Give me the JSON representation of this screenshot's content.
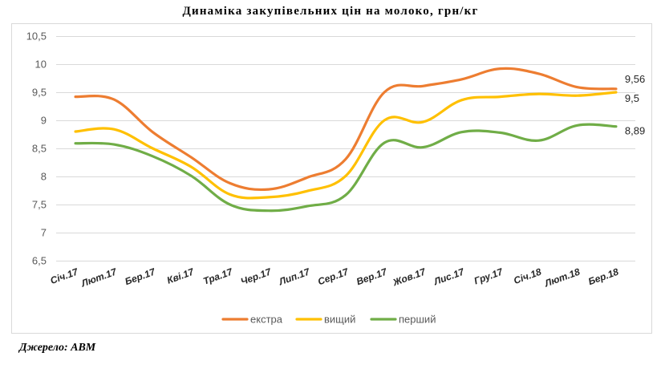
{
  "chart_data": {
    "type": "line",
    "title": "Динаміка закупівельних цін на молоко, грн/кг",
    "xlabel": "",
    "ylabel": "",
    "categories": [
      "Січ.17",
      "Лют.17",
      "Бер.17",
      "Кві.17",
      "Тра.17",
      "Чер.17",
      "Лип.17",
      "Сер.17",
      "Вер.17",
      "Жов.17",
      "Лис.17",
      "Гру.17",
      "Січ.18",
      "Лют.18",
      "Бер.18"
    ],
    "ylim": [
      6.5,
      10.5
    ],
    "yticks": [
      "6,5",
      "7",
      "7,5",
      "8",
      "8,5",
      "9",
      "9,5",
      "10",
      "10,5"
    ],
    "grid": true,
    "legend_position": "bottom",
    "series": [
      {
        "name": "екстра",
        "color": "#ED7D31",
        "values": [
          9.42,
          9.37,
          8.79,
          8.34,
          7.88,
          7.77,
          7.98,
          8.31,
          9.5,
          9.61,
          9.73,
          9.92,
          9.83,
          9.59,
          9.56
        ],
        "end_label": "9,56"
      },
      {
        "name": "вищий",
        "color": "#FFC000",
        "values": [
          8.8,
          8.84,
          8.5,
          8.17,
          7.68,
          7.63,
          7.74,
          8.01,
          9.0,
          8.97,
          9.36,
          9.42,
          9.47,
          9.44,
          9.5
        ],
        "end_label": "9,5"
      },
      {
        "name": "перший",
        "color": "#70AD47",
        "values": [
          8.59,
          8.57,
          8.36,
          8.01,
          7.5,
          7.39,
          7.47,
          7.67,
          8.6,
          8.52,
          8.79,
          8.78,
          8.64,
          8.91,
          8.89
        ],
        "end_label": "8,89"
      }
    ]
  },
  "source": "Джерело: АВМ"
}
